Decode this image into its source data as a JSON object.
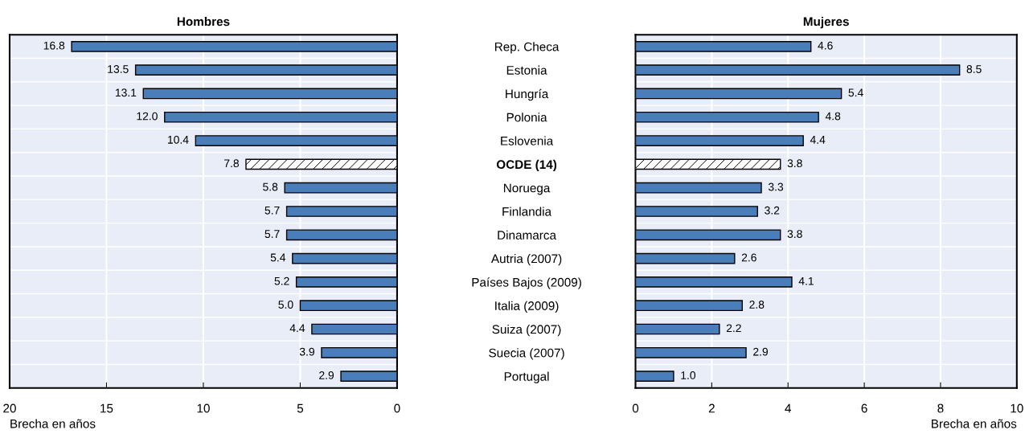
{
  "chart_data": [
    {
      "type": "bar",
      "orientation": "horizontal",
      "title": "Hombres",
      "xlabel": "Brecha en años",
      "categories": [
        "Rep. Checa",
        "Estonia",
        "Hungría",
        "Polonia",
        "Eslovenia",
        "OCDE (14)",
        "Noruega",
        "Finlandia",
        "Dinamarca",
        "Autria (2007)",
        "Países Bajos (2009)",
        "Italia (2009)",
        "Suiza (2007)",
        "Suecia (2007)",
        "Portugal"
      ],
      "values": [
        16.8,
        13.5,
        13.1,
        12.0,
        10.4,
        7.8,
        5.8,
        5.7,
        5.7,
        5.4,
        5.2,
        5.0,
        4.4,
        3.9,
        2.9
      ],
      "value_labels": [
        "16.8",
        "13.5",
        "13.1",
        "12.0",
        "10.4",
        "7.8",
        "5.8",
        "5.7",
        "5.7",
        "5.4",
        "5.2",
        "5.0",
        "4.4",
        "3.9",
        "2.9"
      ],
      "colors": [
        "#4a7ebb",
        "#4a7ebb",
        "#4a7ebb",
        "#4a7ebb",
        "#4a7ebb",
        "#ffffff",
        "#4a7ebb",
        "#4a7ebb",
        "#4a7ebb",
        "#4a7ebb",
        "#4a7ebb",
        "#4a7ebb",
        "#4a7ebb",
        "#4a7ebb",
        "#4a7ebb"
      ],
      "xlim": [
        20,
        0
      ],
      "xticks": [
        20,
        15,
        10,
        5,
        0
      ],
      "grid": "x"
    },
    {
      "type": "bar",
      "orientation": "horizontal",
      "title": "Mujeres",
      "xlabel": "Brecha en años",
      "categories": [
        null,
        null,
        null,
        null,
        null,
        null,
        null,
        null,
        null,
        null,
        null,
        null,
        null,
        null,
        null
      ],
      "values": [
        4.6,
        8.5,
        5.4,
        4.8,
        4.4,
        3.8,
        3.3,
        3.2,
        3.8,
        2.6,
        4.1,
        2.8,
        2.2,
        2.9,
        1.0
      ],
      "value_labels": [
        "4.6",
        "8.5",
        "5.4",
        "4.8",
        "4.4",
        "3.8",
        "3.3",
        "3.2",
        "3.8",
        "2.6",
        "4.1",
        "2.8",
        "2.2",
        "2.9",
        "1.0"
      ],
      "colors": [
        "#4a7ebb",
        "#4a7ebb",
        "#4a7ebb",
        "#4a7ebb",
        "#4a7ebb",
        "#ffffff",
        "#4a7ebb",
        "#4a7ebb",
        "#4a7ebb",
        "#4a7ebb",
        "#4a7ebb",
        "#4a7ebb",
        "#4a7ebb",
        "#4a7ebb",
        "#4a7ebb"
      ],
      "xlim": [
        0,
        10
      ],
      "xticks": [
        0,
        2,
        4,
        6,
        8,
        10
      ],
      "grid": "x",
      "tick_labels": "x"
    }
  ]
}
